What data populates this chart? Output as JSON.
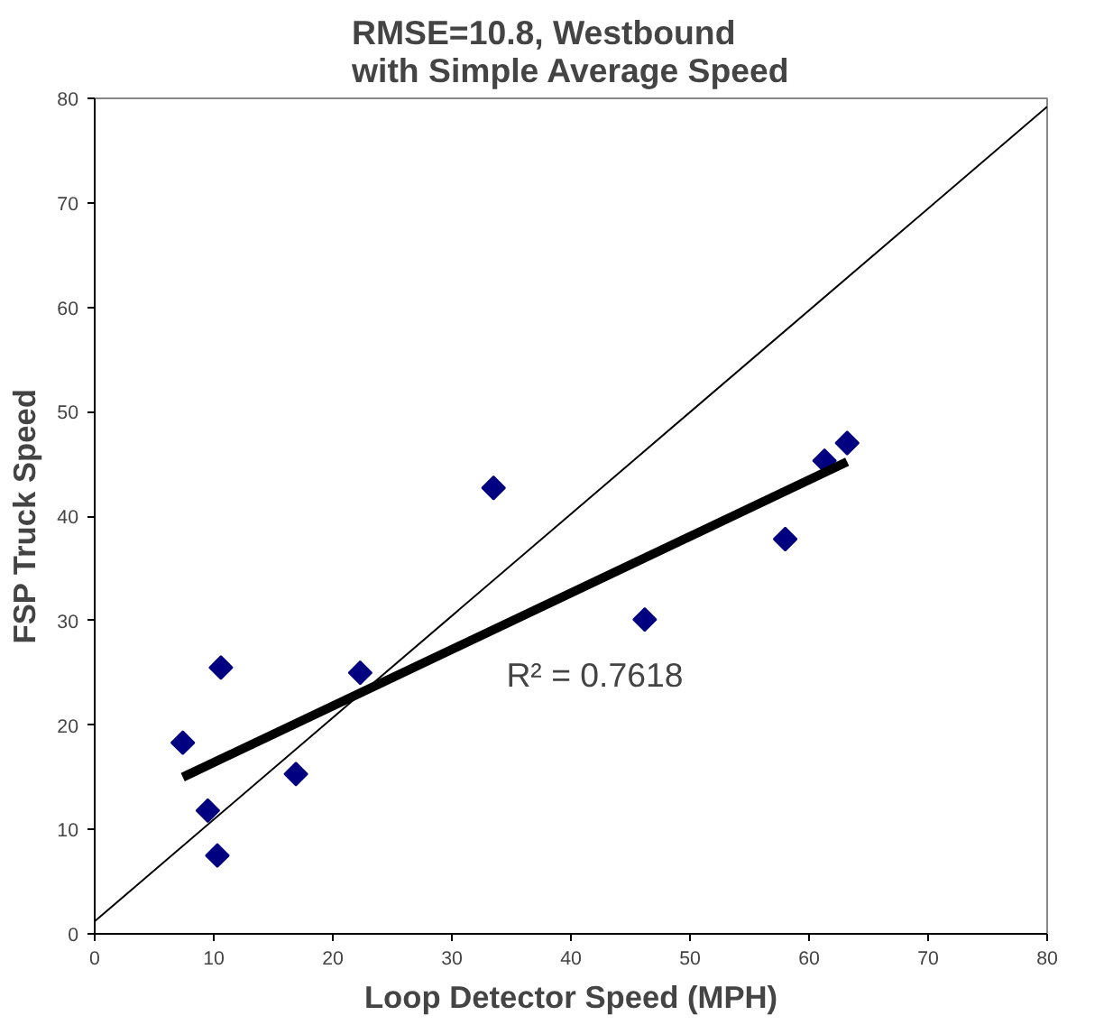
{
  "chart_data": {
    "type": "scatter",
    "title": "RMSE=10.8, Westbound\nwith Simple Average Speed",
    "xlabel": "Loop Detector Speed (MPH)",
    "ylabel": "FSP Truck Speed",
    "xlim": [
      0,
      80
    ],
    "ylim": [
      0,
      80
    ],
    "xticks": [
      0,
      10,
      20,
      30,
      40,
      50,
      60,
      70,
      80
    ],
    "yticks": [
      0,
      10,
      20,
      30,
      40,
      50,
      60,
      70,
      80
    ],
    "grid": false,
    "series": [
      {
        "marker": "diamond",
        "color": "#000080",
        "x": [
          7.4,
          9.5,
          10.3,
          10.6,
          16.9,
          22.3,
          33.5,
          46.2,
          58.0,
          61.3,
          63.2
        ],
        "values": [
          18.3,
          11.8,
          7.5,
          25.5,
          15.3,
          25.0,
          42.7,
          30.1,
          37.8,
          45.3,
          47.0
        ]
      },
      {
        "type": "line",
        "marker": "none",
        "color": "#000000",
        "line_style": "solid",
        "x": [
          7.4,
          63.2
        ],
        "values": [
          15.0,
          45.2
        ]
      },
      {
        "type": "line",
        "marker": "none",
        "color": "#000000",
        "line_style": "solid",
        "x": [
          0,
          80
        ],
        "values": [
          1.2,
          79.2
        ]
      }
    ],
    "annotations": [
      "R² = 0.7618"
    ]
  }
}
